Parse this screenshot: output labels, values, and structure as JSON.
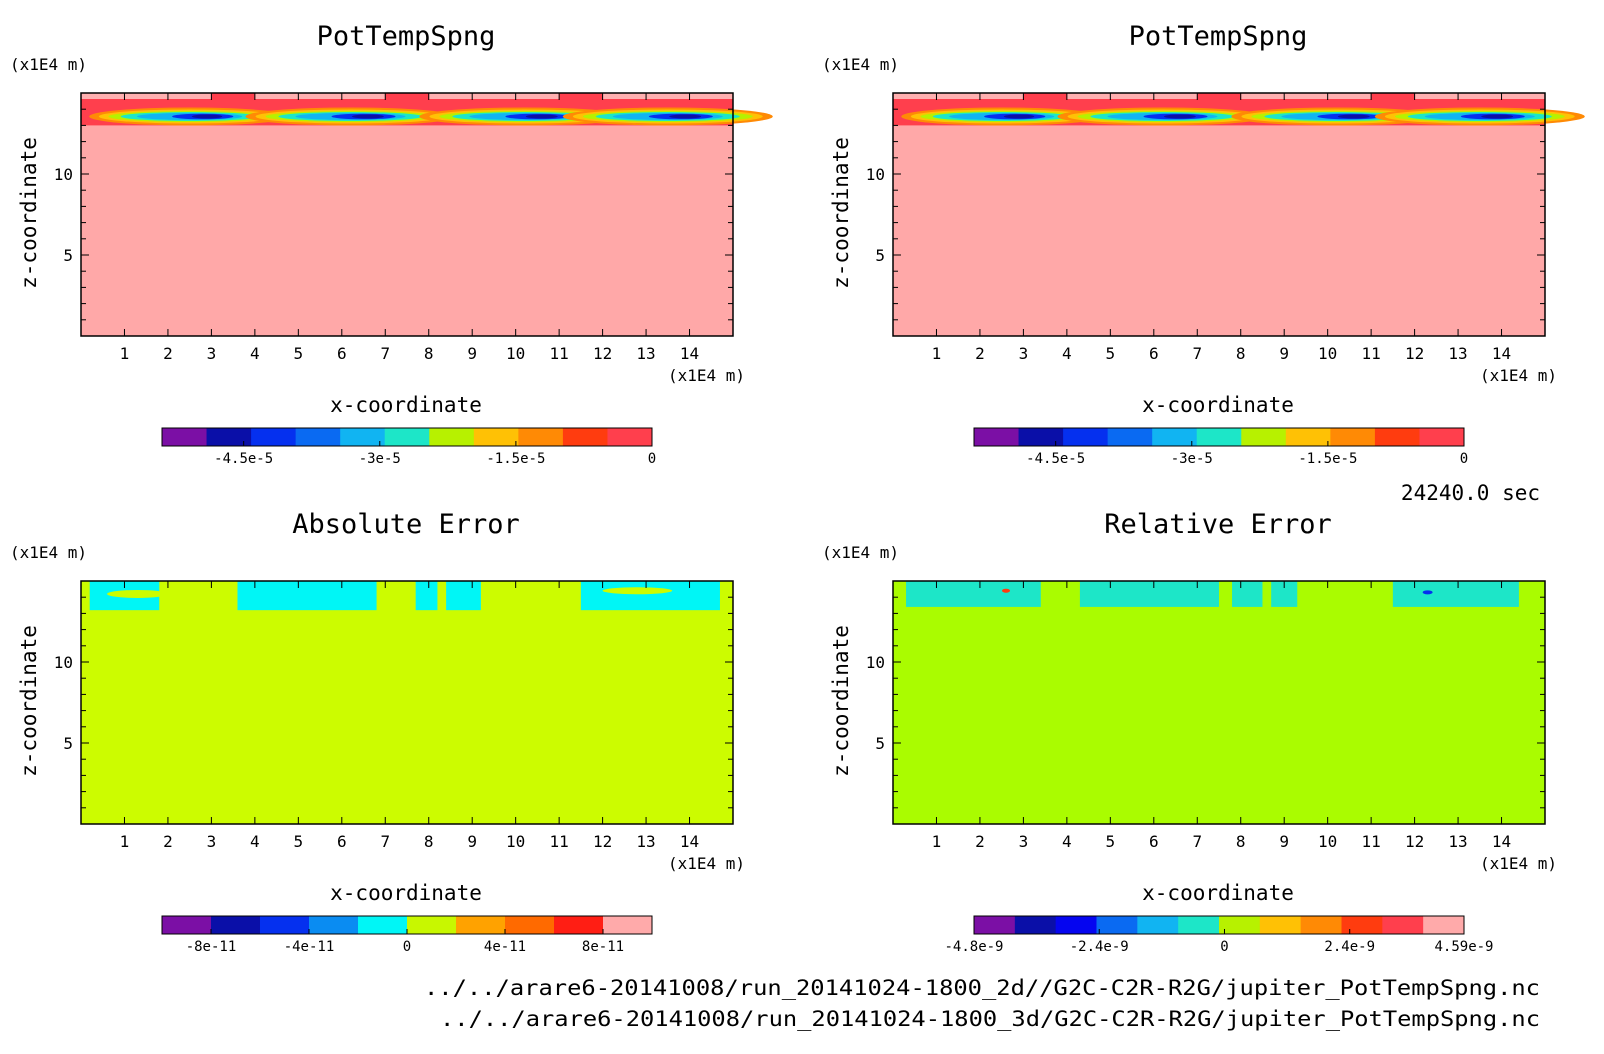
{
  "info": {
    "time": "24240.0 sec",
    "file1": "../../arare6-20141008/run_20141024-1800_2d//G2C-C2R-R2G/jupiter_PotTempSpng.nc",
    "file2": "../../arare6-20141008/run_20141024-1800_3d/G2C-C2R-R2G/jupiter_PotTempSpng.nc"
  },
  "chart_data": [
    {
      "type": "heatmap",
      "title": "PotTempSpng",
      "xlabel": "x-coordinate",
      "ylabel": "z-coordinate",
      "x_unit": "(x1E4 m)",
      "y_unit": "(x1E4 m)",
      "xlim": [
        0,
        15
      ],
      "ylim": [
        0,
        15
      ],
      "x_ticks": [
        "1",
        "2",
        "3",
        "4",
        "5",
        "6",
        "7",
        "8",
        "9",
        "10",
        "11",
        "12",
        "13",
        "14"
      ],
      "y_ticks": [
        "5",
        "10"
      ],
      "colorbar": {
        "range": [
          -5.4e-05,
          0
        ],
        "tick_labels": [
          "-4.5e-5",
          "-3e-5",
          "-1.5e-5",
          "0"
        ],
        "colors": [
          "#7b0fa5",
          "#0a0fa8",
          "#0530ef",
          "#0a6af2",
          "#11b4f2",
          "#1de6c8",
          "#b7f100",
          "#ffc105",
          "#ff8a05",
          "#ff3c0f",
          "#ff3f4d"
        ]
      },
      "field_summary": "near 0 below 13; negative bands (min about -5.4e-5) near x = 2.5, 6.5, 10.5, 14 at z about 13.5"
    },
    {
      "type": "heatmap",
      "title": "PotTempSpng",
      "xlabel": "x-coordinate",
      "ylabel": "z-coordinate",
      "x_unit": "(x1E4 m)",
      "y_unit": "(x1E4 m)",
      "xlim": [
        0,
        15
      ],
      "ylim": [
        0,
        15
      ],
      "x_ticks": [
        "1",
        "2",
        "3",
        "4",
        "5",
        "6",
        "7",
        "8",
        "9",
        "10",
        "11",
        "12",
        "13",
        "14"
      ],
      "y_ticks": [
        "5",
        "10"
      ],
      "colorbar": {
        "range": [
          -5.4e-05,
          0
        ],
        "tick_labels": [
          "-4.5e-5",
          "-3e-5",
          "-1.5e-5",
          "0"
        ],
        "colors": [
          "#7b0fa5",
          "#0a0fa8",
          "#0530ef",
          "#0a6af2",
          "#11b4f2",
          "#1de6c8",
          "#b7f100",
          "#ffc105",
          "#ff8a05",
          "#ff3c0f",
          "#ff3f4d"
        ]
      },
      "field_summary": "identical to first panel"
    },
    {
      "type": "heatmap",
      "title": "Absolute Error",
      "xlabel": "x-coordinate",
      "ylabel": "z-coordinate",
      "x_unit": "(x1E4 m)",
      "y_unit": "(x1E4 m)",
      "xlim": [
        0,
        15
      ],
      "ylim": [
        0,
        15
      ],
      "x_ticks": [
        "1",
        "2",
        "3",
        "4",
        "5",
        "6",
        "7",
        "8",
        "9",
        "10",
        "11",
        "12",
        "13",
        "14"
      ],
      "y_ticks": [
        "5",
        "10"
      ],
      "colorbar": {
        "range": [
          -1e-10,
          1e-10
        ],
        "tick_labels": [
          "-8e-11",
          "-4e-11",
          "0",
          "4e-11",
          "8e-11"
        ],
        "colors": [
          "#7b0fa5",
          "#0a0fa8",
          "#0530ef",
          "#0a8cf2",
          "#00f6f6",
          "#c8f700",
          "#ffa200",
          "#ff6a00",
          "#ff1e14",
          "#ffaaaa"
        ]
      },
      "field_summary": "0 almost everywhere; small negative patches near z = 13-15"
    },
    {
      "type": "heatmap",
      "title": "Relative Error",
      "xlabel": "x-coordinate",
      "ylabel": "z-coordinate",
      "x_unit": "(x1E4 m)",
      "y_unit": "(x1E4 m)",
      "xlim": [
        0,
        15
      ],
      "ylim": [
        0,
        15
      ],
      "x_ticks": [
        "1",
        "2",
        "3",
        "4",
        "5",
        "6",
        "7",
        "8",
        "9",
        "10",
        "11",
        "12",
        "13",
        "14"
      ],
      "y_ticks": [
        "5",
        "10"
      ],
      "colorbar": {
        "range": [
          -4.8e-09,
          4.59e-09
        ],
        "tick_labels": [
          "-4.8e-9",
          "-2.4e-9",
          "0",
          "2.4e-9",
          "4.59e-9"
        ],
        "colors": [
          "#7b0fa5",
          "#0a0fa8",
          "#0505f0",
          "#0a6af2",
          "#11b4f2",
          "#1de6c8",
          "#b7f100",
          "#ffc105",
          "#ff8a05",
          "#ff3c0f",
          "#ff3f4d",
          "#ffaaaa"
        ]
      },
      "field_summary": "0 almost everywhere; small patches near z = 13-15"
    }
  ]
}
